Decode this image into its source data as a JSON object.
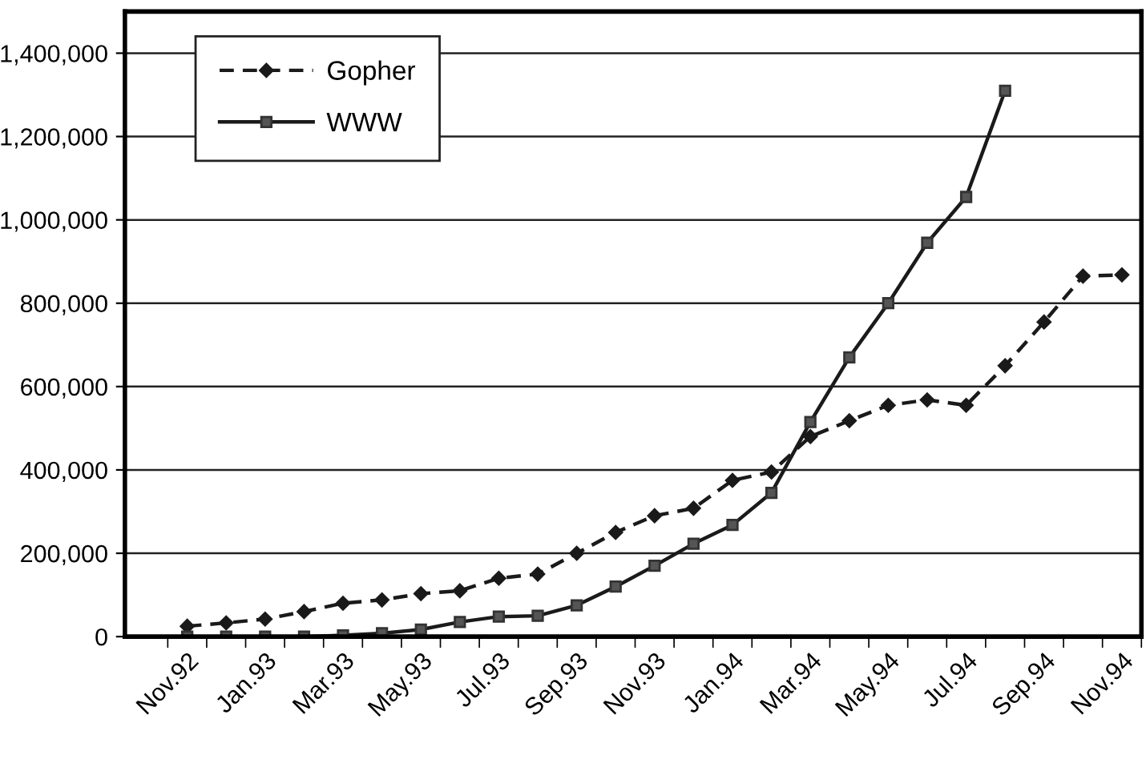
{
  "chart_data": {
    "type": "line",
    "categories": [
      "Nov.92",
      null,
      "Jan.93",
      null,
      "Mar.93",
      null,
      "May.93",
      null,
      "Jul.93",
      null,
      "Sep.93",
      null,
      "Nov.93",
      null,
      "Jan.94",
      null,
      "Mar.94",
      null,
      "May.94",
      null,
      "Jul.94",
      null,
      "Sep.94",
      null,
      "Nov.94"
    ],
    "series": [
      {
        "name": "Gopher",
        "color": "#1a1a1a",
        "marker": "diamond",
        "line_style": "dashed",
        "values": [
          25000,
          33000,
          42000,
          60000,
          80000,
          88000,
          103000,
          110000,
          140000,
          150000,
          200000,
          250000,
          290000,
          308000,
          375000,
          395000,
          480000,
          518000,
          555000,
          568000,
          555000,
          650000,
          755000,
          865000,
          868000
        ]
      },
      {
        "name": "WWW",
        "color": "#1a1a1a",
        "marker": "square",
        "line_style": "solid",
        "values": [
          0,
          0,
          0,
          0,
          3000,
          8000,
          17000,
          35000,
          48000,
          50000,
          75000,
          120000,
          170000,
          223000,
          268000,
          345000,
          515000,
          670000,
          800000,
          945000,
          1055000,
          1310000,
          null,
          null,
          null
        ]
      }
    ],
    "ylim": [
      0,
      1500000
    ],
    "yticks": [
      {
        "value": 0,
        "label": "0"
      },
      {
        "value": 200000,
        "label": "200,000"
      },
      {
        "value": 400000,
        "label": "400,000"
      },
      {
        "value": 600000,
        "label": "600,000"
      },
      {
        "value": 800000,
        "label": "800,000"
      },
      {
        "value": 1000000,
        "label": "1,000,000"
      },
      {
        "value": 1200000,
        "label": "1,200,000"
      },
      {
        "value": 1400000,
        "label": "1,400,000"
      }
    ],
    "grid": "y",
    "legend": "top left"
  }
}
